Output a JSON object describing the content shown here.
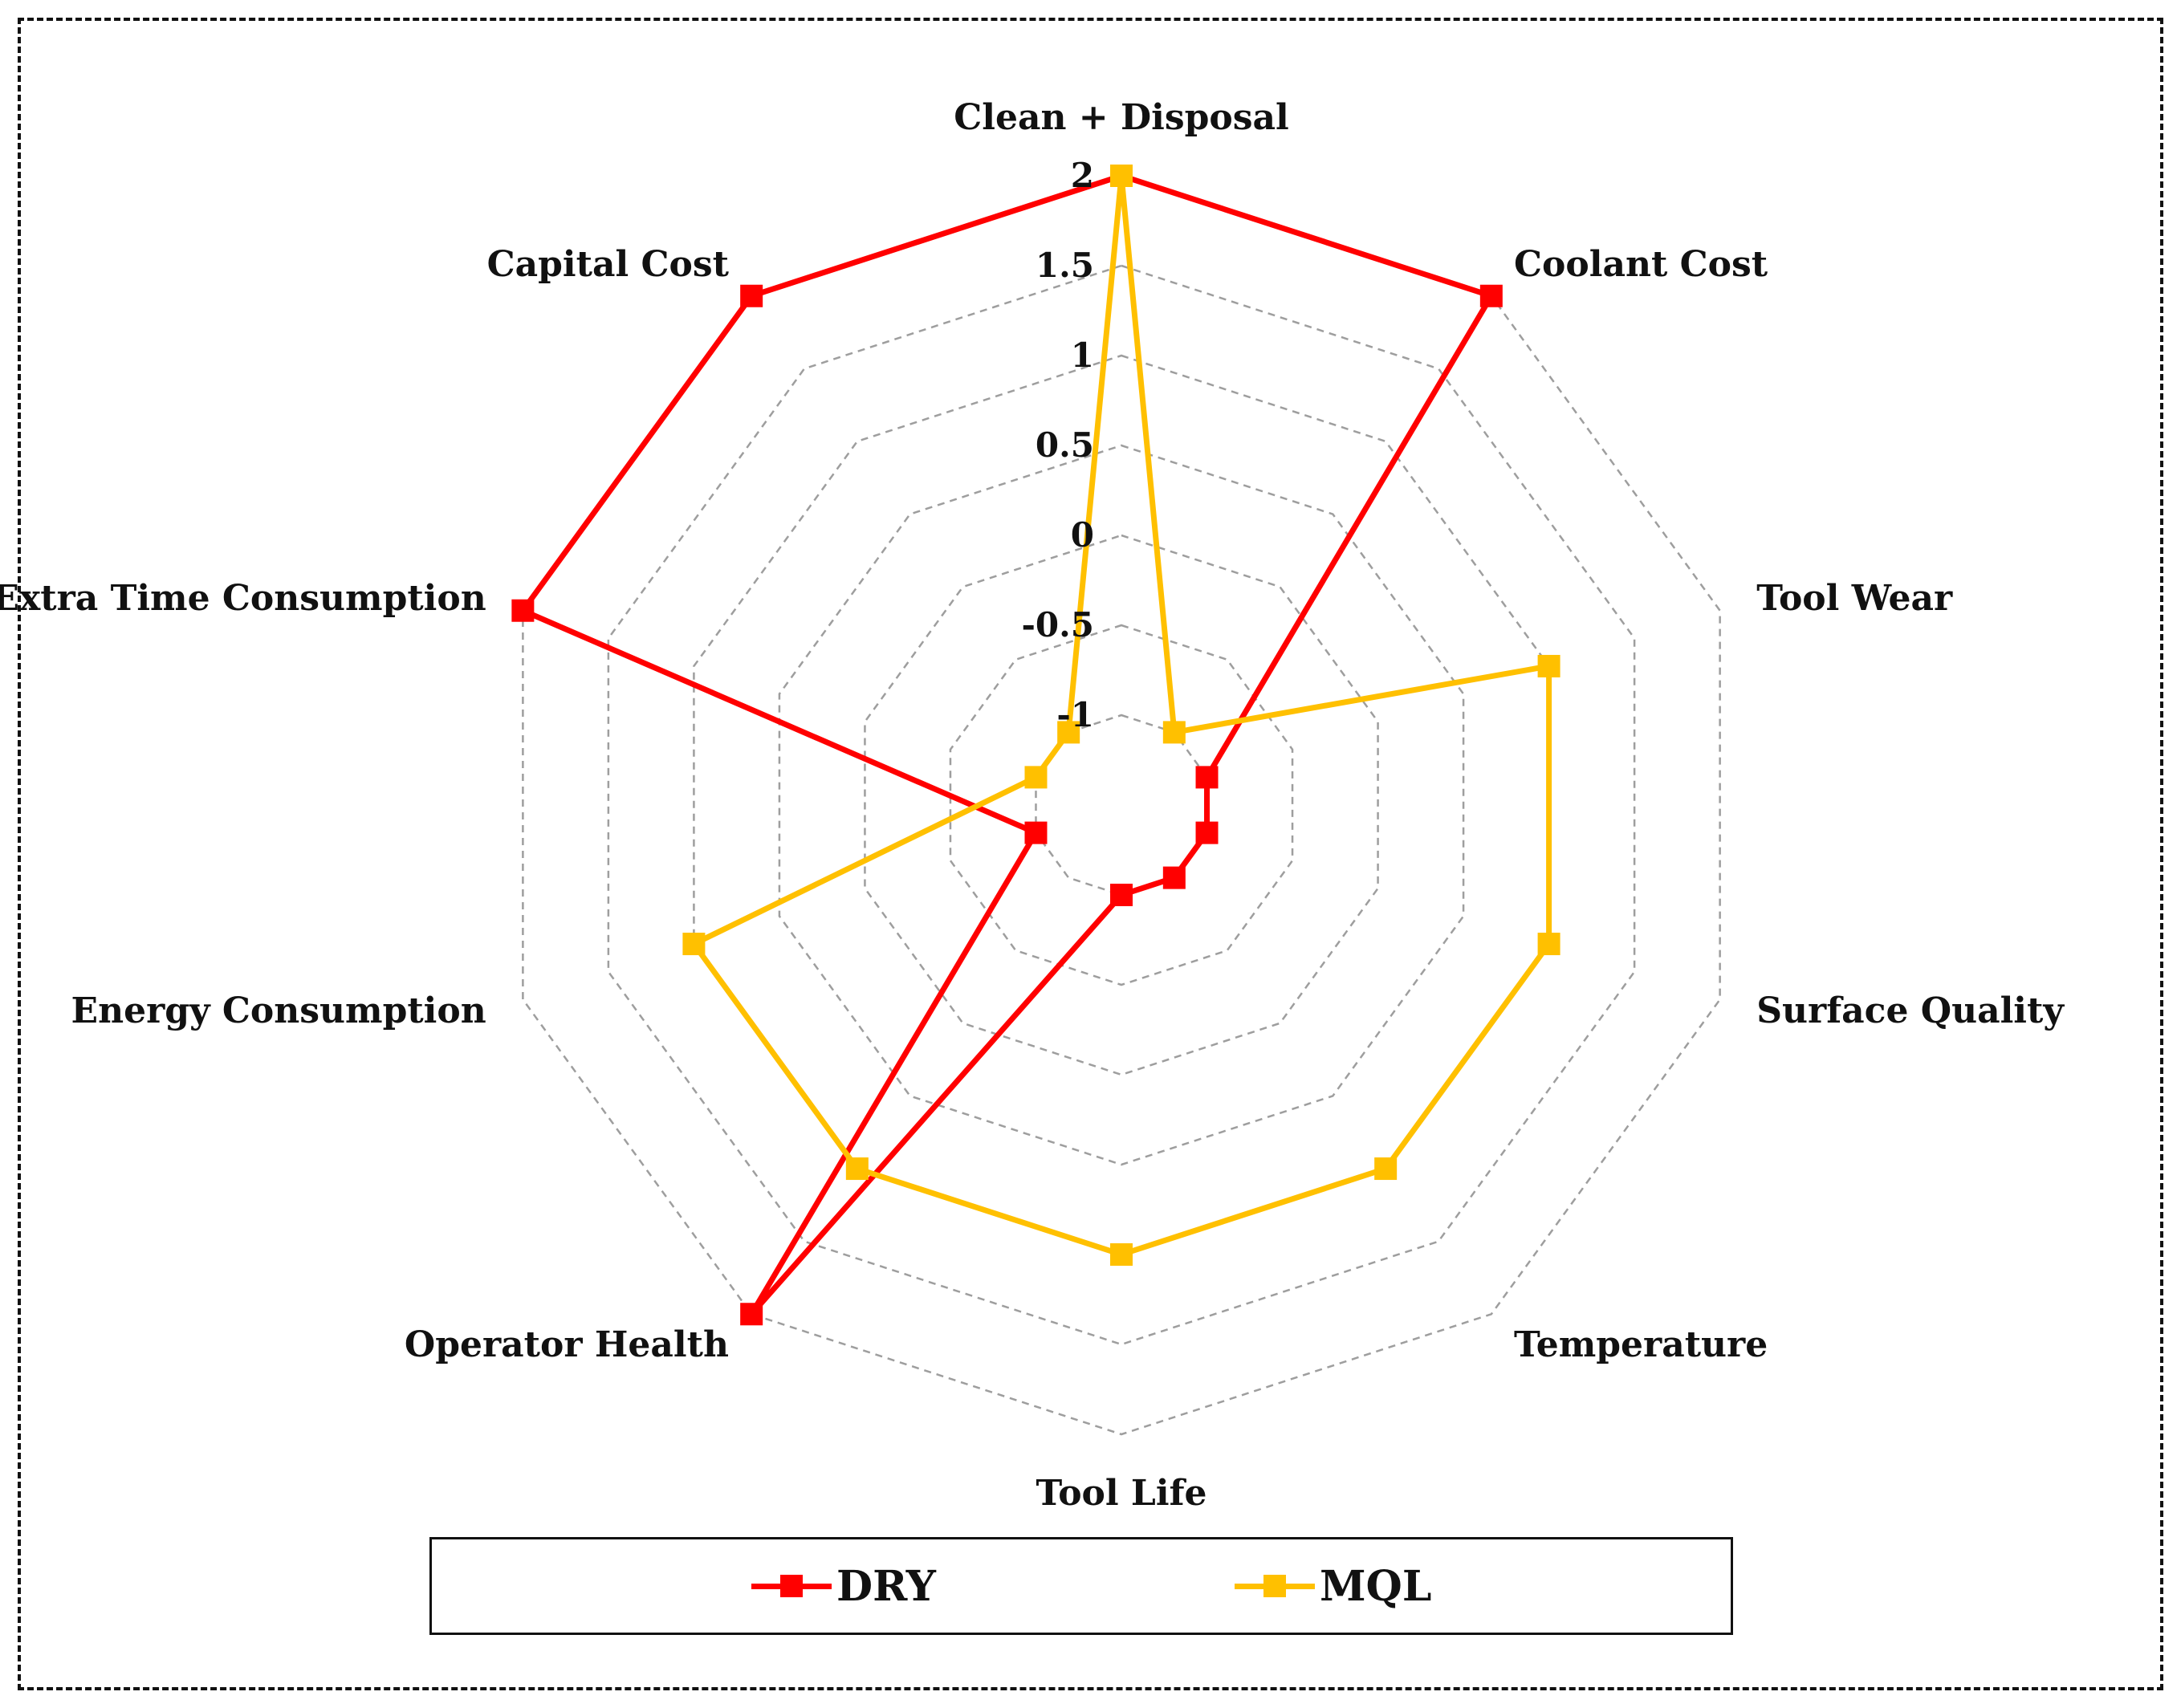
{
  "chart_data": {
    "type": "radar",
    "categories": [
      "Clean + Disposal",
      "Coolant Cost",
      "Tool Wear",
      "Surface Quality",
      "Temperature",
      "Tool Life",
      "Operator Health",
      "Energy Consumption",
      "Extra Time Consumption",
      "Capital Cost"
    ],
    "series": [
      {
        "name": "DRY",
        "color": "#ff0000",
        "values": [
          2,
          2,
          -1,
          -1,
          -1,
          -1,
          2,
          -1,
          2,
          2
        ]
      },
      {
        "name": "MQL",
        "color": "#ffc000",
        "values": [
          2,
          -1,
          1,
          1,
          1,
          1,
          1,
          1,
          -1,
          -1
        ]
      }
    ],
    "rlim": [
      -1.5,
      2
    ],
    "ticks": [
      -1,
      -0.5,
      0,
      0.5,
      1,
      1.5,
      2
    ],
    "tick_labels": [
      "-1",
      "-0.5",
      "0",
      "0.5",
      "1",
      "1.5",
      "2"
    ],
    "grid": true,
    "legend": "bottom"
  },
  "legend": {
    "items": [
      {
        "label": "DRY",
        "color": "#ff0000"
      },
      {
        "label": "MQL",
        "color": "#ffc000"
      }
    ]
  }
}
